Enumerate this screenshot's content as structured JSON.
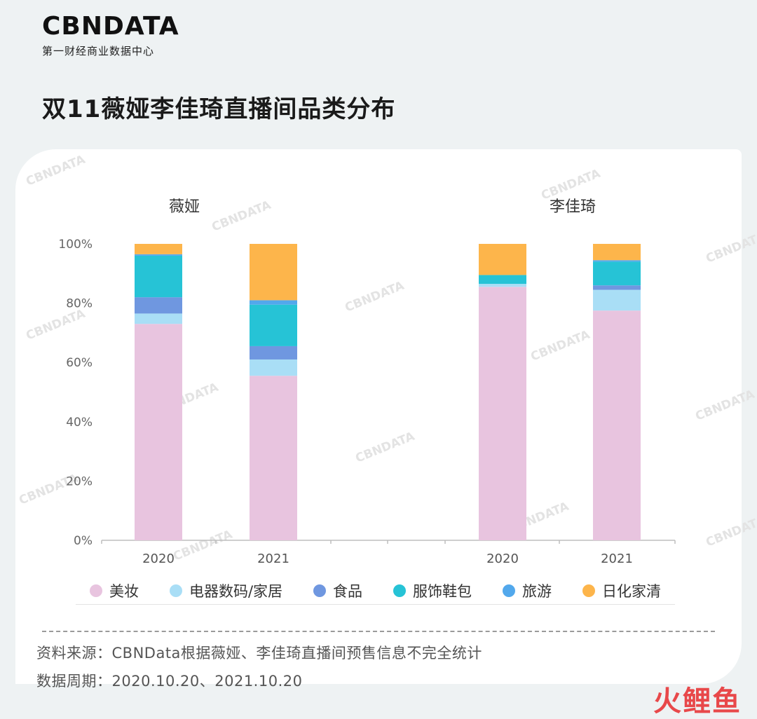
{
  "brand": {
    "logo": "CBNDATA",
    "subtitle": "第一财经商业数据中心"
  },
  "title": "双11薇娅李佳琦直播间品类分布",
  "colors": {
    "美妆": "#e8c4df",
    "电器数码/家居": "#a9def6",
    "食品": "#6f97e0",
    "服饰鞋包": "#26c3d6",
    "旅游": "#52a8ec",
    "日化家清": "#fdb54b"
  },
  "chart_data": {
    "type": "bar",
    "stacked": true,
    "groups": [
      {
        "name": "薇娅",
        "categories": [
          "2020",
          "2021"
        ]
      },
      {
        "name": "李佳琦",
        "categories": [
          "2020",
          "2021"
        ]
      }
    ],
    "x": [
      "2020",
      "2021",
      "2020",
      "2021"
    ],
    "series": [
      {
        "name": "美妆",
        "values": [
          73,
          55.5,
          85.5,
          77.5
        ]
      },
      {
        "name": "电器数码/家居",
        "values": [
          3.5,
          5.5,
          1,
          7
        ]
      },
      {
        "name": "食品",
        "values": [
          5.5,
          4.5,
          0,
          1.5
        ]
      },
      {
        "name": "服饰鞋包",
        "values": [
          14,
          14,
          3,
          8
        ]
      },
      {
        "name": "旅游",
        "values": [
          0.5,
          1.5,
          0,
          0.5
        ]
      },
      {
        "name": "日化家清",
        "values": [
          3.5,
          19,
          10.5,
          5.5
        ]
      }
    ],
    "ylim": [
      0,
      100
    ],
    "yticks": [
      "0%",
      "20%",
      "40%",
      "60%",
      "80%",
      "100%"
    ],
    "grid": false,
    "legend": "bottom"
  },
  "notes": {
    "source": "资料来源：CBNData根据薇娅、李佳琦直播间预售信息不完全统计",
    "period": "数据周期：2020.10.20、2021.10.20"
  },
  "watermark": "火鲤鱼",
  "chart_watermark": "CBNDATA"
}
